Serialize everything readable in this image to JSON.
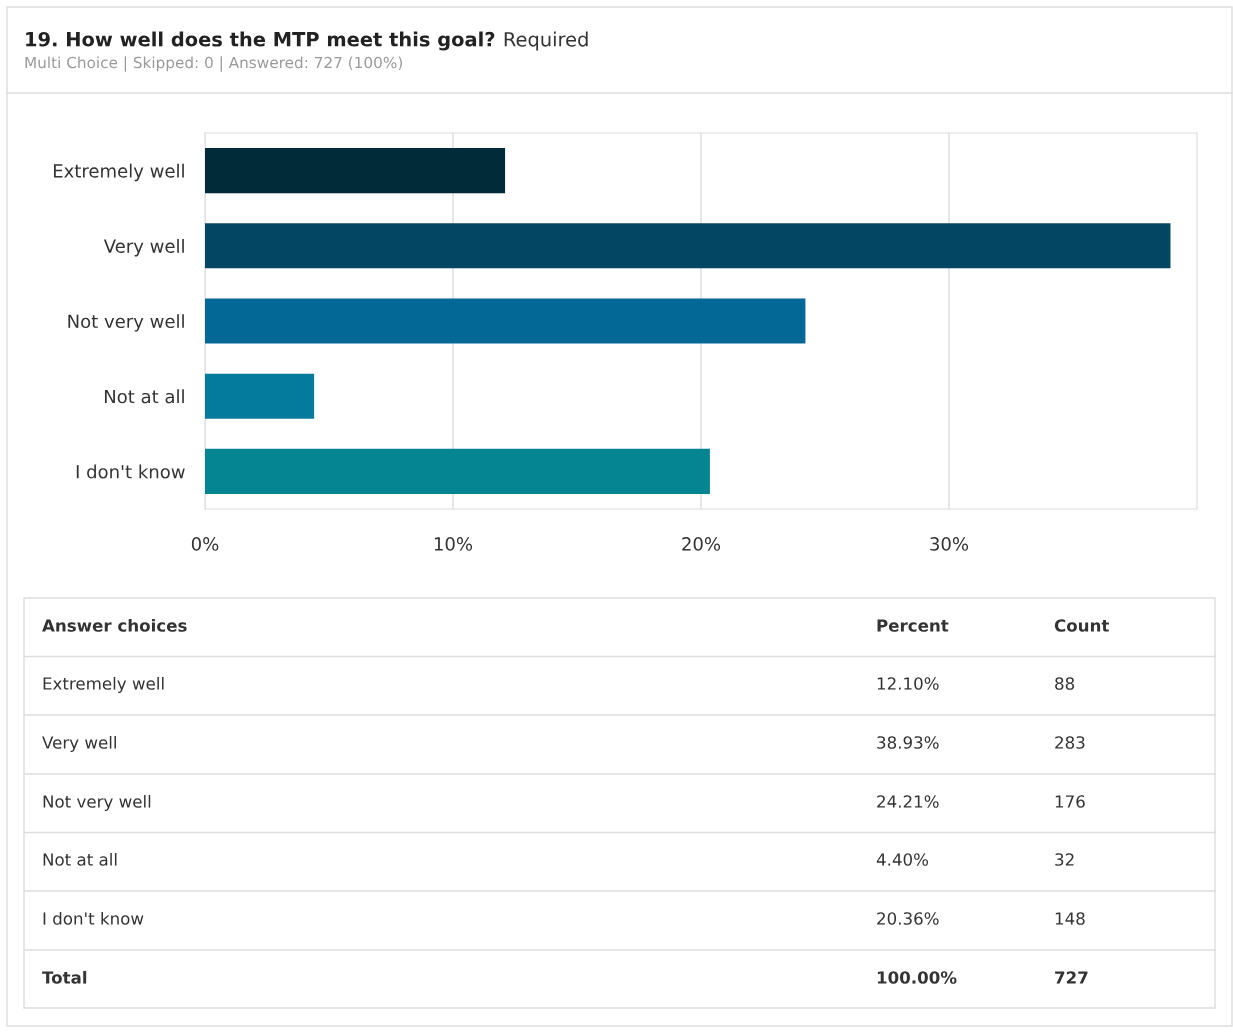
{
  "chart_data": {
    "type": "bar",
    "orientation": "horizontal",
    "title": "19. How well does the MTP meet this goal?",
    "subtitle": "Multi Choice | Skipped: 0 | Answered: 727 (100%)",
    "categories": [
      "Extremely well",
      "Very well",
      "Not very well",
      "Not at all",
      "I don't know"
    ],
    "values": [
      12.1,
      38.93,
      24.21,
      4.4,
      20.36
    ],
    "colors": [
      "#022b3a",
      "#034663",
      "#046896",
      "#047a9c",
      "#058591"
    ],
    "xlim": [
      0,
      40
    ],
    "xticks": [
      {
        "value": 0,
        "label": "0%"
      },
      {
        "value": 10,
        "label": "10%"
      },
      {
        "value": 20,
        "label": "20%"
      },
      {
        "value": 30,
        "label": "30%"
      }
    ],
    "grid": "x",
    "annotations": [
      "Required",
      "Answer choices",
      "Percent",
      "Count",
      "12.10%",
      "88",
      "38.93%",
      "283",
      "24.21%",
      "176",
      "4.40%",
      "32",
      "20.36%",
      "148",
      "Total",
      "100.00%",
      "727"
    ]
  }
}
